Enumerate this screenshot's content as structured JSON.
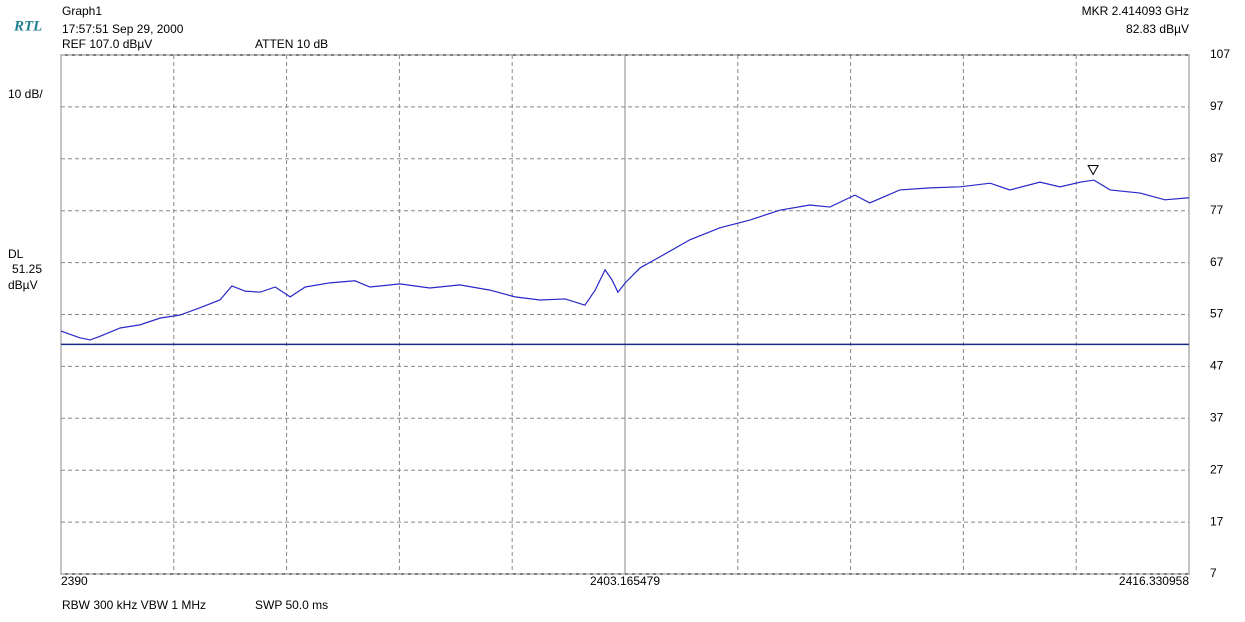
{
  "chart_data": {
    "type": "line",
    "logo": "RTL",
    "title": "Graph1",
    "timestamp": "17:57:51 Sep 29, 2000",
    "ref": "REF 107.0 dBµV",
    "atten": "ATTEN 10  dB",
    "scale": "10 dB/",
    "footer": "RBW 300 kHz  VBW 1 MHz",
    "sweep": "SWP 50.0 ms",
    "xlim": [
      2390,
      2416.330958
    ],
    "ylim": [
      7,
      107
    ],
    "xticks": [
      2390,
      2403.165479,
      2416.330958
    ],
    "yticks": [
      7,
      17,
      27,
      37,
      47,
      57,
      67,
      77,
      87,
      97,
      107
    ],
    "grid": true,
    "x": [
      2390.0,
      2390.44,
      2390.68,
      2390.91,
      2391.38,
      2391.84,
      2392.31,
      2392.78,
      2393.24,
      2393.71,
      2393.99,
      2394.3,
      2394.65,
      2395.0,
      2395.35,
      2395.7,
      2396.28,
      2396.86,
      2397.21,
      2397.91,
      2398.61,
      2399.31,
      2400.01,
      2400.6,
      2401.18,
      2401.77,
      2402.23,
      2402.47,
      2402.7,
      2402.86,
      2403.0,
      2403.17,
      2403.52,
      2403.98,
      2404.68,
      2405.38,
      2406.08,
      2406.78,
      2407.48,
      2407.95,
      2408.53,
      2408.88,
      2409.58,
      2410.29,
      2410.99,
      2411.69,
      2412.15,
      2412.85,
      2413.32,
      2413.79,
      2414.11,
      2414.49,
      2415.19,
      2415.77,
      2416.33
    ],
    "series": [
      {
        "color": "#2828c8",
        "values": [
          53.8,
          52.5,
          52.1,
          52.8,
          54.4,
          55,
          56.3,
          56.9,
          58.3,
          59.8,
          62.5,
          61.5,
          61.3,
          62.3,
          60.4,
          62.3,
          63.1,
          63.5,
          62.3,
          62.9,
          62.1,
          62.7,
          61.7,
          60.4,
          59.8,
          60,
          58.8,
          61.7,
          65.6,
          63.7,
          61.3,
          63.1,
          66,
          68.1,
          71.4,
          73.7,
          75.2,
          77.1,
          78.1,
          77.7,
          80,
          78.5,
          81,
          81.4,
          81.6,
          82.3,
          81,
          82.5,
          81.6,
          82.5,
          82.9,
          81,
          80.4,
          79.1,
          79.5
        ]
      }
    ],
    "display_line": {
      "label": "DL",
      "value": 51.25,
      "unit": "dBµV",
      "color": "#1a2a8a"
    },
    "marker": {
      "label": "MKR  2.414093 GHz",
      "value_label": "82.83 dBµV",
      "x": 2414.093,
      "value": 82.83
    }
  }
}
